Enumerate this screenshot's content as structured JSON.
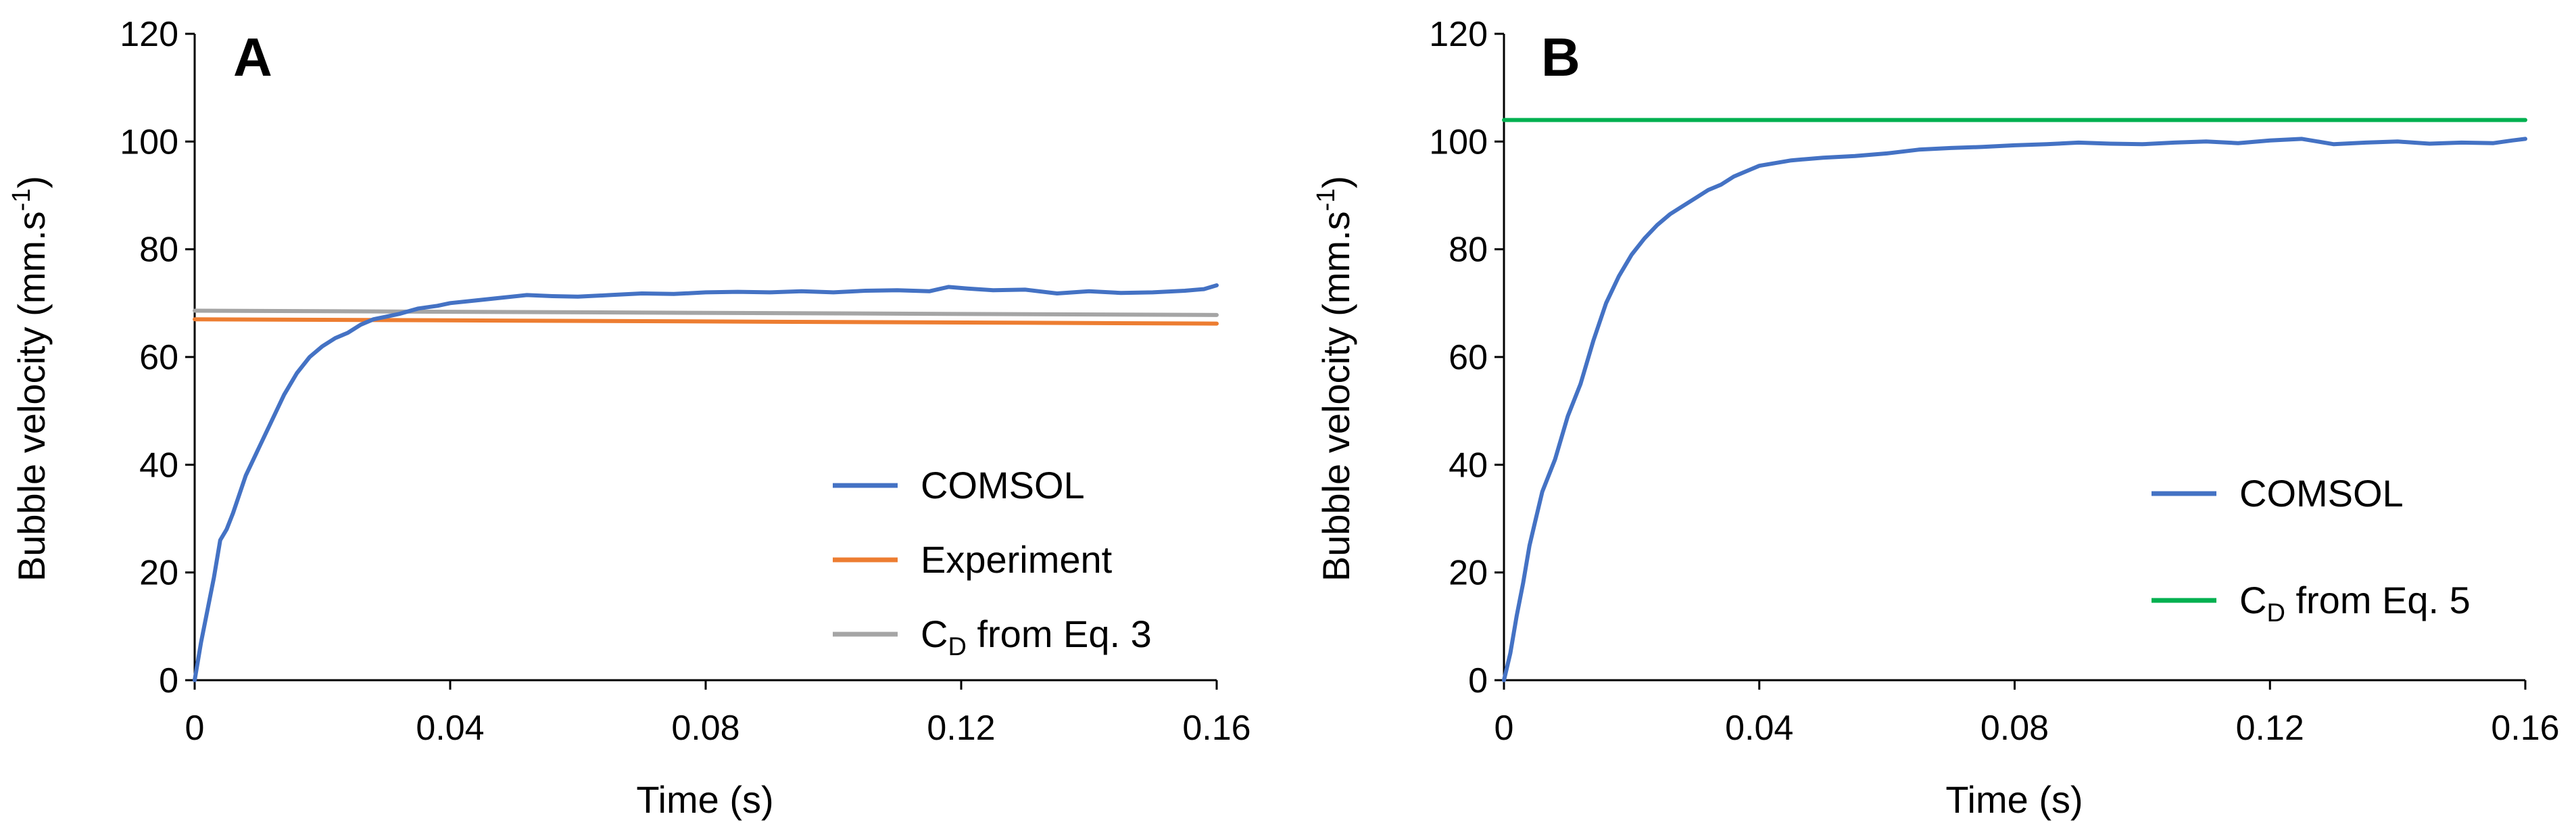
{
  "chart_data": [
    {
      "type": "line",
      "panel_label": "A",
      "xlabel": "Time (s)",
      "ylabel_main": "Bubble velocity (mm.s",
      "ylabel_sup": "-1",
      "ylabel_close": ")",
      "xlim": [
        0,
        0.16
      ],
      "ylim": [
        0,
        120
      ],
      "xticks": [
        0,
        0.04,
        0.08,
        0.12,
        0.16
      ],
      "xtick_labels": [
        "0",
        "0.04",
        "0.08",
        "0.12",
        "0.16"
      ],
      "yticks": [
        0,
        20,
        40,
        60,
        80,
        100,
        120
      ],
      "ytick_labels": [
        "0",
        "20",
        "40",
        "60",
        "80",
        "100",
        "120"
      ],
      "grid": false,
      "legend_placement": "bottom-right",
      "series": [
        {
          "name": "COMSOL",
          "color": "#4472C4",
          "x": [
            0,
            0.001,
            0.002,
            0.003,
            0.004,
            0.005,
            0.006,
            0.008,
            0.01,
            0.012,
            0.014,
            0.016,
            0.018,
            0.02,
            0.022,
            0.024,
            0.026,
            0.028,
            0.03,
            0.032,
            0.035,
            0.038,
            0.04,
            0.044,
            0.048,
            0.052,
            0.056,
            0.06,
            0.065,
            0.07,
            0.075,
            0.08,
            0.085,
            0.09,
            0.095,
            0.1,
            0.105,
            0.11,
            0.115,
            0.118,
            0.121,
            0.125,
            0.13,
            0.135,
            0.14,
            0.145,
            0.15,
            0.155,
            0.158,
            0.16
          ],
          "y": [
            0,
            7,
            13,
            19,
            26,
            28,
            31,
            38,
            43,
            48,
            53,
            57,
            60,
            62,
            63.5,
            64.5,
            66,
            67,
            67.5,
            68,
            69,
            69.5,
            70,
            70.5,
            71,
            71.5,
            71.3,
            71.2,
            71.5,
            71.8,
            71.7,
            72,
            72.1,
            72,
            72.2,
            72,
            72.3,
            72.4,
            72.2,
            73,
            72.7,
            72.4,
            72.5,
            71.8,
            72.2,
            71.9,
            72,
            72.3,
            72.6,
            73.3
          ]
        },
        {
          "name": "Experiment",
          "color": "#ED7D31",
          "x": [
            0,
            0.16
          ],
          "y": [
            67,
            66.2
          ]
        },
        {
          "name": "C_D from Eq. 3",
          "label_main": "C",
          "label_sub": "D",
          "label_rest": " from Eq. 3",
          "color": "#A5A5A5",
          "x": [
            0,
            0.16
          ],
          "y": [
            68.6,
            67.8
          ]
        }
      ]
    },
    {
      "type": "line",
      "panel_label": "B",
      "xlabel": "Time (s)",
      "ylabel_main": "Bubble velocity (mm.s",
      "ylabel_sup": "-1",
      "ylabel_close": ")",
      "xlim": [
        0,
        0.16
      ],
      "ylim": [
        0,
        120
      ],
      "xticks": [
        0,
        0.04,
        0.08,
        0.12,
        0.16
      ],
      "xtick_labels": [
        "0",
        "0.04",
        "0.08",
        "0.12",
        "0.16"
      ],
      "yticks": [
        0,
        20,
        40,
        60,
        80,
        100,
        120
      ],
      "ytick_labels": [
        "0",
        "20",
        "40",
        "60",
        "80",
        "100",
        "120"
      ],
      "grid": false,
      "legend_placement": "bottom-right",
      "series": [
        {
          "name": "COMSOL",
          "color": "#4472C4",
          "x": [
            0,
            0.001,
            0.002,
            0.003,
            0.004,
            0.005,
            0.006,
            0.008,
            0.01,
            0.012,
            0.014,
            0.016,
            0.018,
            0.02,
            0.022,
            0.024,
            0.026,
            0.028,
            0.03,
            0.032,
            0.034,
            0.036,
            0.038,
            0.04,
            0.045,
            0.05,
            0.055,
            0.06,
            0.065,
            0.07,
            0.075,
            0.08,
            0.085,
            0.09,
            0.095,
            0.1,
            0.105,
            0.11,
            0.115,
            0.12,
            0.125,
            0.13,
            0.135,
            0.14,
            0.145,
            0.15,
            0.155,
            0.158,
            0.16
          ],
          "y": [
            0,
            5,
            12,
            18,
            25,
            30,
            35,
            41,
            49,
            55,
            63,
            70,
            75,
            79,
            82,
            84.5,
            86.5,
            88,
            89.5,
            91,
            92,
            93.5,
            94.5,
            95.5,
            96.5,
            97,
            97.3,
            97.8,
            98.5,
            98.8,
            99,
            99.3,
            99.5,
            99.8,
            99.6,
            99.5,
            99.8,
            100,
            99.7,
            100.2,
            100.5,
            99.5,
            99.8,
            100,
            99.6,
            99.8,
            99.7,
            100.2,
            100.5
          ]
        },
        {
          "name": "C_D from Eq. 5",
          "label_main": "C",
          "label_sub": "D",
          "label_rest": " from Eq. 5",
          "color": "#00B050",
          "x": [
            0,
            0.16
          ],
          "y": [
            104,
            104
          ]
        }
      ]
    }
  ]
}
